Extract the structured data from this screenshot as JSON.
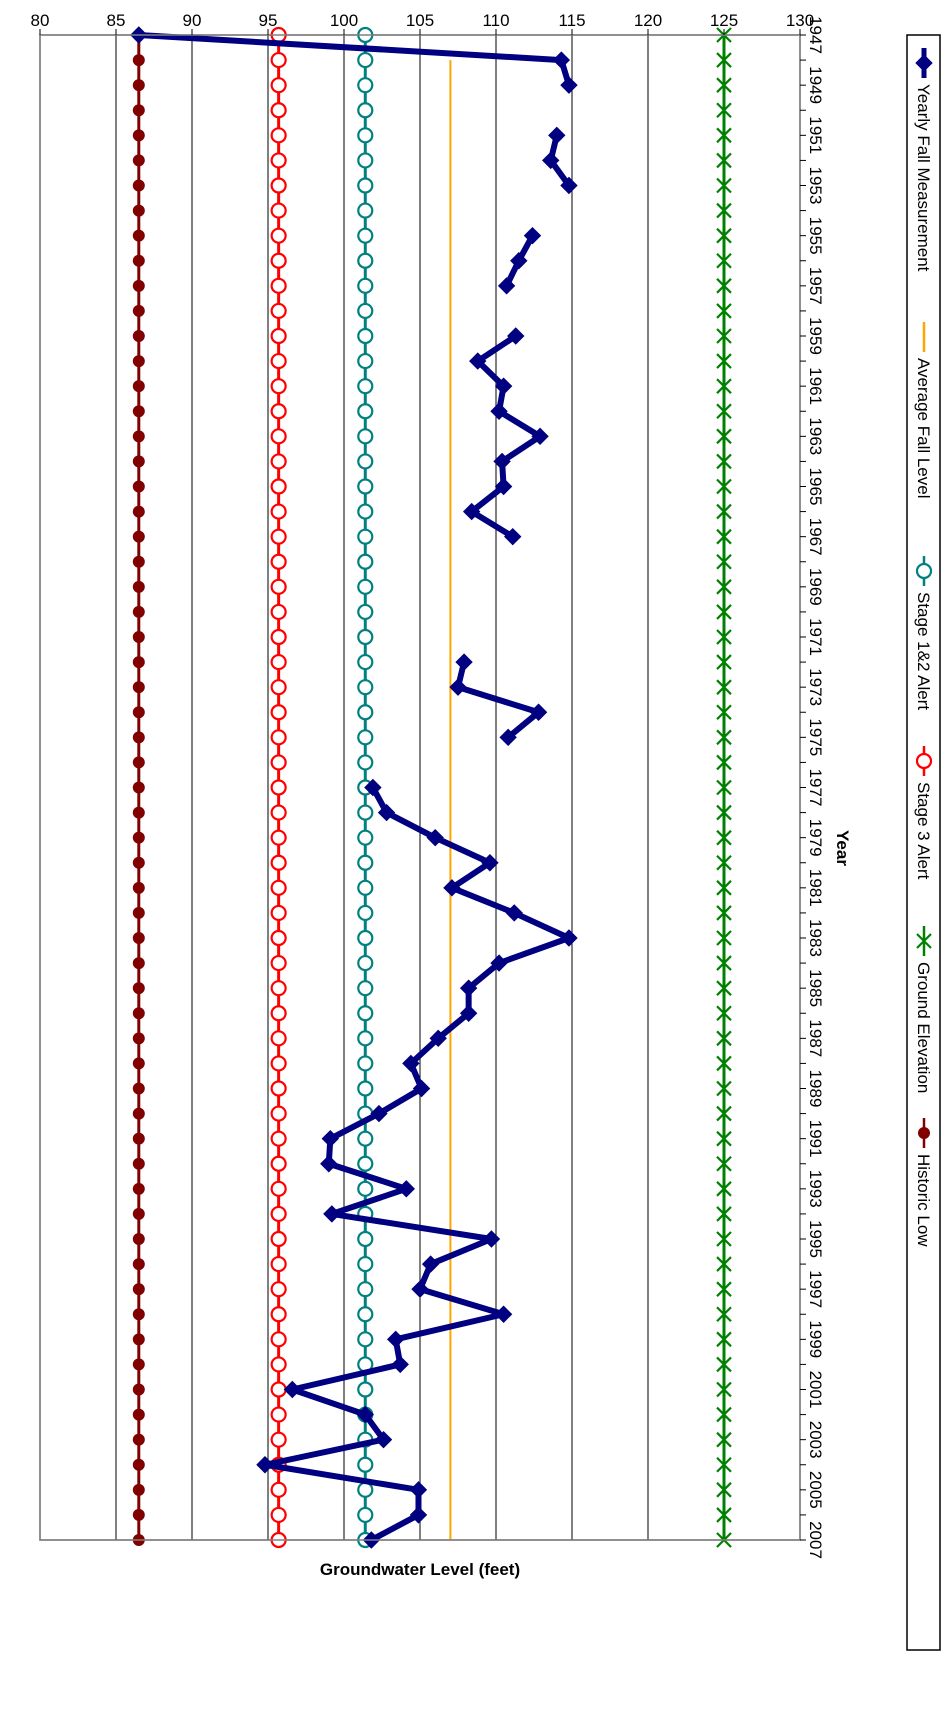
{
  "chart_data": {
    "type": "line",
    "xlabel": "Year",
    "ylabel": "Groundwater Level (feet)",
    "xlim": [
      1947,
      2007
    ],
    "x_ticks": [
      "1947",
      "1949",
      "1951",
      "1953",
      "1955",
      "1957",
      "1959",
      "1961",
      "1963",
      "1965",
      "1967",
      "1969",
      "1971",
      "1973",
      "1975",
      "1977",
      "1979",
      "1981",
      "1983",
      "1985",
      "1987",
      "1989",
      "1991",
      "1993",
      "1995",
      "1997",
      "1999",
      "2001",
      "2003",
      "2005",
      "2007"
    ],
    "ylim": [
      80,
      130
    ],
    "y_ticks": [
      "80",
      "85",
      "90",
      "95",
      "100",
      "105",
      "110",
      "115",
      "120",
      "125",
      "130"
    ],
    "grid": "horizontal",
    "legend_position": "bottom",
    "series": [
      {
        "name": "Yearly Fall Measurement",
        "color": "#000080",
        "marker": "diamond",
        "points": [
          [
            1947,
            86.5
          ],
          [
            1948,
            114.3
          ],
          [
            1949,
            114.8
          ],
          [
            null,
            null
          ],
          [
            1951,
            114.0
          ],
          [
            1952,
            113.6
          ],
          [
            1953,
            114.8
          ],
          [
            null,
            null
          ],
          [
            1955,
            112.4
          ],
          [
            1956,
            111.5
          ],
          [
            1957,
            110.7
          ],
          [
            null,
            null
          ],
          [
            1959,
            111.3
          ],
          [
            1960,
            108.8
          ],
          [
            1961,
            110.5
          ],
          [
            1962,
            110.2
          ],
          [
            1963,
            112.9
          ],
          [
            1964,
            110.4
          ],
          [
            1965,
            110.5
          ],
          [
            1966,
            108.4
          ],
          [
            1967,
            111.1
          ],
          [
            null,
            null
          ],
          [
            1972,
            107.9
          ],
          [
            1973,
            107.5
          ],
          [
            1974,
            112.8
          ],
          [
            1975,
            110.8
          ],
          [
            null,
            null
          ],
          [
            1977,
            101.9
          ],
          [
            1978,
            102.8
          ],
          [
            1979,
            106.0
          ],
          [
            1980,
            109.6
          ],
          [
            1981,
            107.1
          ],
          [
            1982,
            111.2
          ],
          [
            1983,
            114.8
          ],
          [
            1984,
            110.2
          ],
          [
            1985,
            108.2
          ],
          [
            1986,
            108.2
          ],
          [
            1987,
            106.2
          ],
          [
            1988,
            104.4
          ],
          [
            1989,
            105.1
          ],
          [
            1990,
            102.3
          ],
          [
            1991,
            99.1
          ],
          [
            1992,
            99.0
          ],
          [
            1993,
            104.1
          ],
          [
            1994,
            99.2
          ],
          [
            1995,
            109.7
          ],
          [
            1996,
            105.7
          ],
          [
            1997,
            105.0
          ],
          [
            1998,
            110.5
          ],
          [
            1999,
            103.4
          ],
          [
            2000,
            103.7
          ],
          [
            2001,
            96.6
          ],
          [
            2002,
            101.4
          ],
          [
            2003,
            102.6
          ],
          [
            2004,
            94.8
          ],
          [
            2005,
            104.9
          ],
          [
            2006,
            104.9
          ],
          [
            2007,
            101.8
          ]
        ]
      },
      {
        "name": "Average Fall Level",
        "color": "#FFA500",
        "marker": "none",
        "constant": 107.0,
        "x_range": [
          1948,
          2007
        ]
      },
      {
        "name": "Stage 1&2 Alert",
        "color": "#008080",
        "marker": "open-circle",
        "constant": 101.4,
        "x_range": [
          1947,
          2007
        ]
      },
      {
        "name": "Stage 3 Alert",
        "color": "#FF0000",
        "marker": "open-circle",
        "constant": 95.7,
        "x_range": [
          1947,
          2007
        ]
      },
      {
        "name": "Ground Elevation",
        "color": "#008000",
        "marker": "x",
        "constant": 125.0,
        "x_range": [
          1947,
          2007
        ]
      },
      {
        "name": "Historic Low",
        "color": "#800000",
        "marker": "filled-circle",
        "constant": 86.5,
        "x_range": [
          1947,
          2007
        ]
      }
    ]
  }
}
